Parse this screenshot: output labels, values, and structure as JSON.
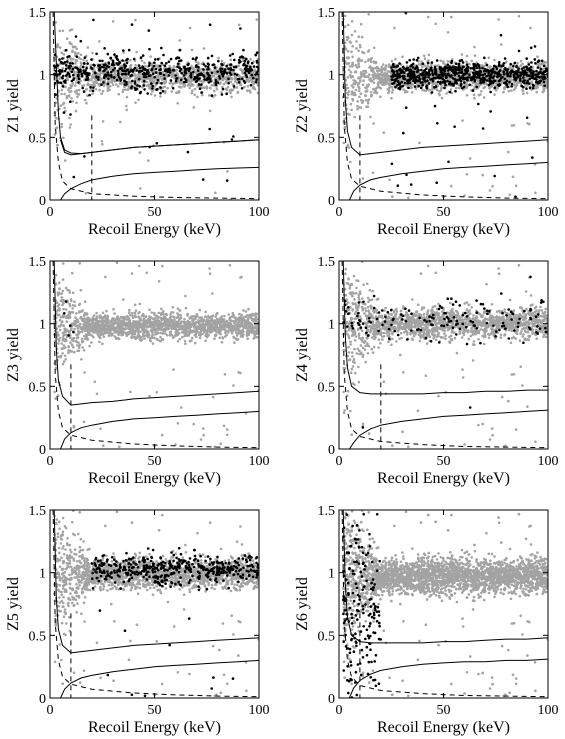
{
  "chart_data": [
    {
      "type": "scatter",
      "title": "",
      "xlabel": "Recoil Energy (keV)",
      "ylabel": "Z1 yield",
      "xlim": [
        0,
        100
      ],
      "ylim": [
        0,
        1.5
      ],
      "xticks": [
        "0",
        "50",
        "100"
      ],
      "yticks": [
        "0",
        "0.5",
        "1",
        "1.5"
      ],
      "grid": false,
      "legend": "none",
      "colors": {
        "gray": "#a3a3a3",
        "black": "#000000"
      },
      "points": {
        "gray": {
          "n": 1200,
          "x_range": [
            2,
            100
          ],
          "y_center": 0.98,
          "y_spread": 0.06,
          "note_low_energy_spread": true
        },
        "black": {
          "n": 550,
          "x_range": [
            2,
            100
          ],
          "y_center": 1.02,
          "y_spread": 0.07
        }
      },
      "threshold_keV": 20,
      "curves": [
        {
          "name": "",
          "style": "solid",
          "x": [
            5,
            7,
            10,
            15,
            20,
            30,
            40,
            50,
            60,
            70,
            80,
            90,
            100
          ],
          "y": [
            0.48,
            0.38,
            0.36,
            0.37,
            0.38,
            0.4,
            0.42,
            0.43,
            0.44,
            0.45,
            0.46,
            0.47,
            0.48
          ]
        },
        {
          "name": "",
          "style": "solid",
          "x": [
            2,
            4,
            5,
            7,
            10,
            15,
            20,
            30,
            40,
            50,
            60,
            70,
            80,
            90,
            100
          ],
          "y": [
            1.5,
            0.7,
            0.5,
            0.4,
            0.375,
            0.37,
            0.38,
            0.4,
            0.42,
            0.43,
            0.44,
            0.45,
            0.46,
            0.47,
            0.48
          ]
        },
        {
          "name": "",
          "style": "solid",
          "x": [
            5,
            7,
            10,
            15,
            20,
            30,
            40,
            50,
            60,
            70,
            80,
            90,
            100
          ],
          "y": [
            0.0,
            0.05,
            0.09,
            0.13,
            0.16,
            0.19,
            0.21,
            0.22,
            0.23,
            0.24,
            0.25,
            0.255,
            0.26
          ]
        },
        {
          "name": "",
          "style": "dashed",
          "x": [
            1.5,
            2.5,
            4,
            6,
            10,
            20,
            40,
            60,
            80,
            100
          ],
          "y": [
            1.5,
            0.6,
            0.3,
            0.15,
            0.09,
            0.05,
            0.03,
            0.02,
            0.015,
            0.01
          ]
        }
      ]
    },
    {
      "type": "scatter",
      "title": "",
      "xlabel": "Recoil Energy (keV)",
      "ylabel": "Z2 yield",
      "xlim": [
        0,
        100
      ],
      "ylim": [
        0,
        1.5
      ],
      "xticks": [
        "0",
        "50",
        "100"
      ],
      "yticks": [
        "0",
        "0.5",
        "1",
        "1.5"
      ],
      "grid": false,
      "legend": "none",
      "colors": {
        "gray": "#a3a3a3",
        "black": "#000000"
      },
      "points": {
        "gray": {
          "n": 1500,
          "x_range": [
            2,
            100
          ],
          "y_center": 0.98,
          "y_spread": 0.06,
          "note_low_energy_spread": true
        },
        "black": {
          "n": 700,
          "x_range": [
            25,
            100
          ],
          "y_center": 1.0,
          "y_spread": 0.05
        }
      },
      "threshold_keV": 10,
      "curves": [
        {
          "name": "",
          "style": "solid",
          "x": [
            2,
            3,
            4,
            6,
            10,
            15,
            20,
            30,
            40,
            50,
            60,
            70,
            80,
            90,
            100
          ],
          "y": [
            1.5,
            0.8,
            0.55,
            0.42,
            0.36,
            0.37,
            0.38,
            0.4,
            0.42,
            0.43,
            0.44,
            0.45,
            0.46,
            0.47,
            0.48
          ]
        },
        {
          "name": "",
          "style": "solid",
          "x": [
            5,
            7,
            10,
            15,
            20,
            30,
            40,
            50,
            60,
            70,
            80,
            90,
            100
          ],
          "y": [
            0.0,
            0.07,
            0.12,
            0.16,
            0.18,
            0.21,
            0.23,
            0.25,
            0.26,
            0.27,
            0.28,
            0.29,
            0.3
          ]
        },
        {
          "name": "",
          "style": "dashed",
          "x": [
            1.5,
            2.5,
            4,
            6,
            10,
            20,
            40,
            60,
            80,
            100
          ],
          "y": [
            1.5,
            0.6,
            0.3,
            0.17,
            0.11,
            0.07,
            0.04,
            0.025,
            0.015,
            0.01
          ]
        }
      ]
    },
    {
      "type": "scatter",
      "title": "",
      "xlabel": "Recoil Energy (keV)",
      "ylabel": "Z3 yield",
      "xlim": [
        0,
        100
      ],
      "ylim": [
        0,
        1.5
      ],
      "xticks": [
        "0",
        "50",
        "100"
      ],
      "yticks": [
        "0",
        "0.5",
        "1",
        "1.5"
      ],
      "grid": false,
      "legend": "none",
      "colors": {
        "gray": "#a3a3a3",
        "black": "#000000"
      },
      "points": {
        "gray": {
          "n": 1800,
          "x_range": [
            2,
            100
          ],
          "y_center": 0.98,
          "y_spread": 0.05,
          "note_low_energy_spread": true
        },
        "black": {
          "n": 5,
          "x_range": [
            5,
            12
          ],
          "y_center": 1.0,
          "y_spread": 0.1
        }
      },
      "threshold_keV": 10,
      "curves": [
        {
          "name": "",
          "style": "solid",
          "x": [
            2,
            3,
            4,
            6,
            10,
            15,
            20,
            30,
            40,
            50,
            60,
            70,
            80,
            90,
            100
          ],
          "y": [
            1.5,
            0.8,
            0.55,
            0.42,
            0.35,
            0.36,
            0.37,
            0.38,
            0.4,
            0.41,
            0.42,
            0.43,
            0.44,
            0.45,
            0.46
          ]
        },
        {
          "name": "",
          "style": "solid",
          "x": [
            5,
            7,
            10,
            15,
            20,
            30,
            40,
            50,
            60,
            70,
            80,
            90,
            100
          ],
          "y": [
            0.0,
            0.08,
            0.13,
            0.17,
            0.19,
            0.22,
            0.24,
            0.25,
            0.26,
            0.27,
            0.28,
            0.29,
            0.3
          ]
        },
        {
          "name": "",
          "style": "dashed",
          "x": [
            1.5,
            2.5,
            4,
            6,
            10,
            20,
            40,
            60,
            80,
            100
          ],
          "y": [
            1.5,
            0.6,
            0.3,
            0.17,
            0.11,
            0.07,
            0.04,
            0.025,
            0.015,
            0.01
          ]
        }
      ]
    },
    {
      "type": "scatter",
      "title": "",
      "xlabel": "Recoil Energy (keV)",
      "ylabel": "Z4 yield",
      "xlim": [
        0,
        100
      ],
      "ylim": [
        0,
        1.5
      ],
      "xticks": [
        "0",
        "50",
        "100"
      ],
      "yticks": [
        "0",
        "0.5",
        "1",
        "1.5"
      ],
      "grid": false,
      "legend": "none",
      "colors": {
        "gray": "#a3a3a3",
        "black": "#000000"
      },
      "points": {
        "gray": {
          "n": 1600,
          "x_range": [
            2,
            100
          ],
          "y_center": 1.0,
          "y_spread": 0.06,
          "note_low_energy_spread": true
        },
        "black": {
          "n": 160,
          "x_range": [
            2,
            100
          ],
          "y_center": 1.03,
          "y_spread": 0.08
        }
      },
      "threshold_keV": 20,
      "curves": [
        {
          "name": "",
          "style": "solid",
          "x": [
            2,
            3,
            4,
            6,
            10,
            15,
            20,
            30,
            40,
            50,
            60,
            70,
            80,
            90,
            100
          ],
          "y": [
            1.5,
            0.9,
            0.65,
            0.5,
            0.45,
            0.44,
            0.44,
            0.44,
            0.44,
            0.45,
            0.45,
            0.46,
            0.46,
            0.47,
            0.47
          ]
        },
        {
          "name": "",
          "style": "solid",
          "x": [
            5,
            7,
            10,
            15,
            20,
            30,
            40,
            50,
            60,
            70,
            80,
            90,
            100
          ],
          "y": [
            0.0,
            0.05,
            0.11,
            0.16,
            0.19,
            0.22,
            0.24,
            0.26,
            0.27,
            0.28,
            0.29,
            0.3,
            0.31
          ]
        },
        {
          "name": "",
          "style": "dashed",
          "x": [
            1.5,
            2.5,
            4,
            6,
            10,
            20,
            40,
            60,
            80,
            100
          ],
          "y": [
            1.5,
            0.6,
            0.3,
            0.16,
            0.1,
            0.06,
            0.035,
            0.02,
            0.015,
            0.01
          ]
        }
      ]
    },
    {
      "type": "scatter",
      "title": "",
      "xlabel": "Recoil Energy (keV)",
      "ylabel": "Z5 yield",
      "xlim": [
        0,
        100
      ],
      "ylim": [
        0,
        1.5
      ],
      "xticks": [
        "0",
        "50",
        "100"
      ],
      "yticks": [
        "0",
        "0.5",
        "1",
        "1.5"
      ],
      "grid": false,
      "legend": "none",
      "colors": {
        "gray": "#a3a3a3",
        "black": "#000000"
      },
      "points": {
        "gray": {
          "n": 1800,
          "x_range": [
            2,
            100
          ],
          "y_center": 0.99,
          "y_spread": 0.06,
          "note_low_energy_spread": true
        },
        "black": {
          "n": 450,
          "x_range": [
            20,
            100
          ],
          "y_center": 1.03,
          "y_spread": 0.06
        }
      },
      "threshold_keV": 10,
      "curves": [
        {
          "name": "",
          "style": "solid",
          "x": [
            2,
            3,
            4,
            6,
            10,
            15,
            20,
            30,
            40,
            50,
            60,
            70,
            80,
            90,
            100
          ],
          "y": [
            1.5,
            0.8,
            0.55,
            0.42,
            0.36,
            0.37,
            0.38,
            0.4,
            0.42,
            0.43,
            0.44,
            0.45,
            0.46,
            0.47,
            0.48
          ]
        },
        {
          "name": "",
          "style": "solid",
          "x": [
            5,
            7,
            10,
            15,
            20,
            30,
            40,
            50,
            60,
            70,
            80,
            90,
            100
          ],
          "y": [
            0.0,
            0.07,
            0.12,
            0.16,
            0.18,
            0.21,
            0.23,
            0.25,
            0.26,
            0.27,
            0.28,
            0.29,
            0.3
          ]
        },
        {
          "name": "",
          "style": "dashed",
          "x": [
            1.5,
            2.5,
            4,
            6,
            10,
            20,
            40,
            60,
            80,
            100
          ],
          "y": [
            1.5,
            0.6,
            0.3,
            0.17,
            0.11,
            0.07,
            0.04,
            0.025,
            0.015,
            0.01
          ]
        }
      ]
    },
    {
      "type": "scatter",
      "title": "",
      "xlabel": "Recoil Energy (keV)",
      "ylabel": "Z6 yield",
      "xlim": [
        0,
        100
      ],
      "ylim": [
        0,
        1.5
      ],
      "xticks": [
        "0",
        "50",
        "100"
      ],
      "yticks": [
        "0",
        "0.5",
        "1",
        "1.5"
      ],
      "grid": false,
      "legend": "none",
      "colors": {
        "gray": "#a3a3a3",
        "black": "#000000"
      },
      "points": {
        "gray": {
          "n": 3200,
          "x_range": [
            2,
            100
          ],
          "y_center": 0.97,
          "y_spread": 0.07,
          "note_low_energy_spread": true
        },
        "black": {
          "n": 200,
          "x_range": [
            2,
            20
          ],
          "y_center": 0.6,
          "y_spread": 0.45
        }
      },
      "threshold_keV": 10,
      "curves": [
        {
          "name": "",
          "style": "solid",
          "x": [
            2,
            3,
            4,
            6,
            10,
            15,
            20,
            30,
            40,
            50,
            60,
            70,
            80,
            90,
            100
          ],
          "y": [
            1.5,
            0.9,
            0.65,
            0.5,
            0.45,
            0.44,
            0.44,
            0.44,
            0.44,
            0.45,
            0.45,
            0.46,
            0.47,
            0.47,
            0.48
          ]
        },
        {
          "name": "",
          "style": "solid",
          "x": [
            5,
            7,
            10,
            15,
            20,
            30,
            40,
            50,
            60,
            70,
            80,
            90,
            100
          ],
          "y": [
            0.0,
            0.08,
            0.14,
            0.19,
            0.22,
            0.25,
            0.27,
            0.28,
            0.29,
            0.29,
            0.3,
            0.3,
            0.31
          ]
        },
        {
          "name": "",
          "style": "dashed",
          "x": [
            1.5,
            2.5,
            4,
            6,
            10,
            20,
            40,
            60,
            80,
            100
          ],
          "y": [
            1.5,
            0.6,
            0.3,
            0.17,
            0.1,
            0.06,
            0.035,
            0.02,
            0.015,
            0.01
          ]
        }
      ]
    }
  ]
}
